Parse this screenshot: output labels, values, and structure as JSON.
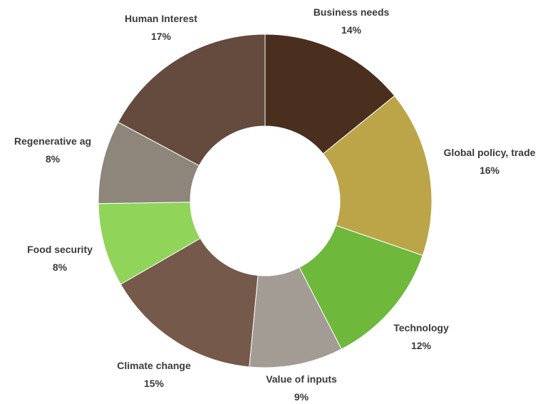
{
  "chart_data": {
    "type": "pie",
    "donut": true,
    "title": "",
    "legend": "none",
    "slices": [
      {
        "label": "Business needs",
        "value": 14,
        "value_label": "14%",
        "color": "#4a2f1e"
      },
      {
        "label": "Global policy, trade",
        "value": 16,
        "value_label": "16%",
        "color": "#bba548"
      },
      {
        "label": "Technology",
        "value": 12,
        "value_label": "12%",
        "color": "#6eb83c"
      },
      {
        "label": "Value of inputs",
        "value": 9,
        "value_label": "9%",
        "color": "#a39c95"
      },
      {
        "label": "Climate change",
        "value": 15,
        "value_label": "15%",
        "color": "#75594a"
      },
      {
        "label": "Food security",
        "value": 8,
        "value_label": "8%",
        "color": "#90d45a"
      },
      {
        "label": "Regenerative ag",
        "value": 8,
        "value_label": "8%",
        "color": "#8e857b"
      },
      {
        "label": "Human Interest",
        "value": 17,
        "value_label": "17%",
        "color": "#654b3d"
      }
    ]
  }
}
